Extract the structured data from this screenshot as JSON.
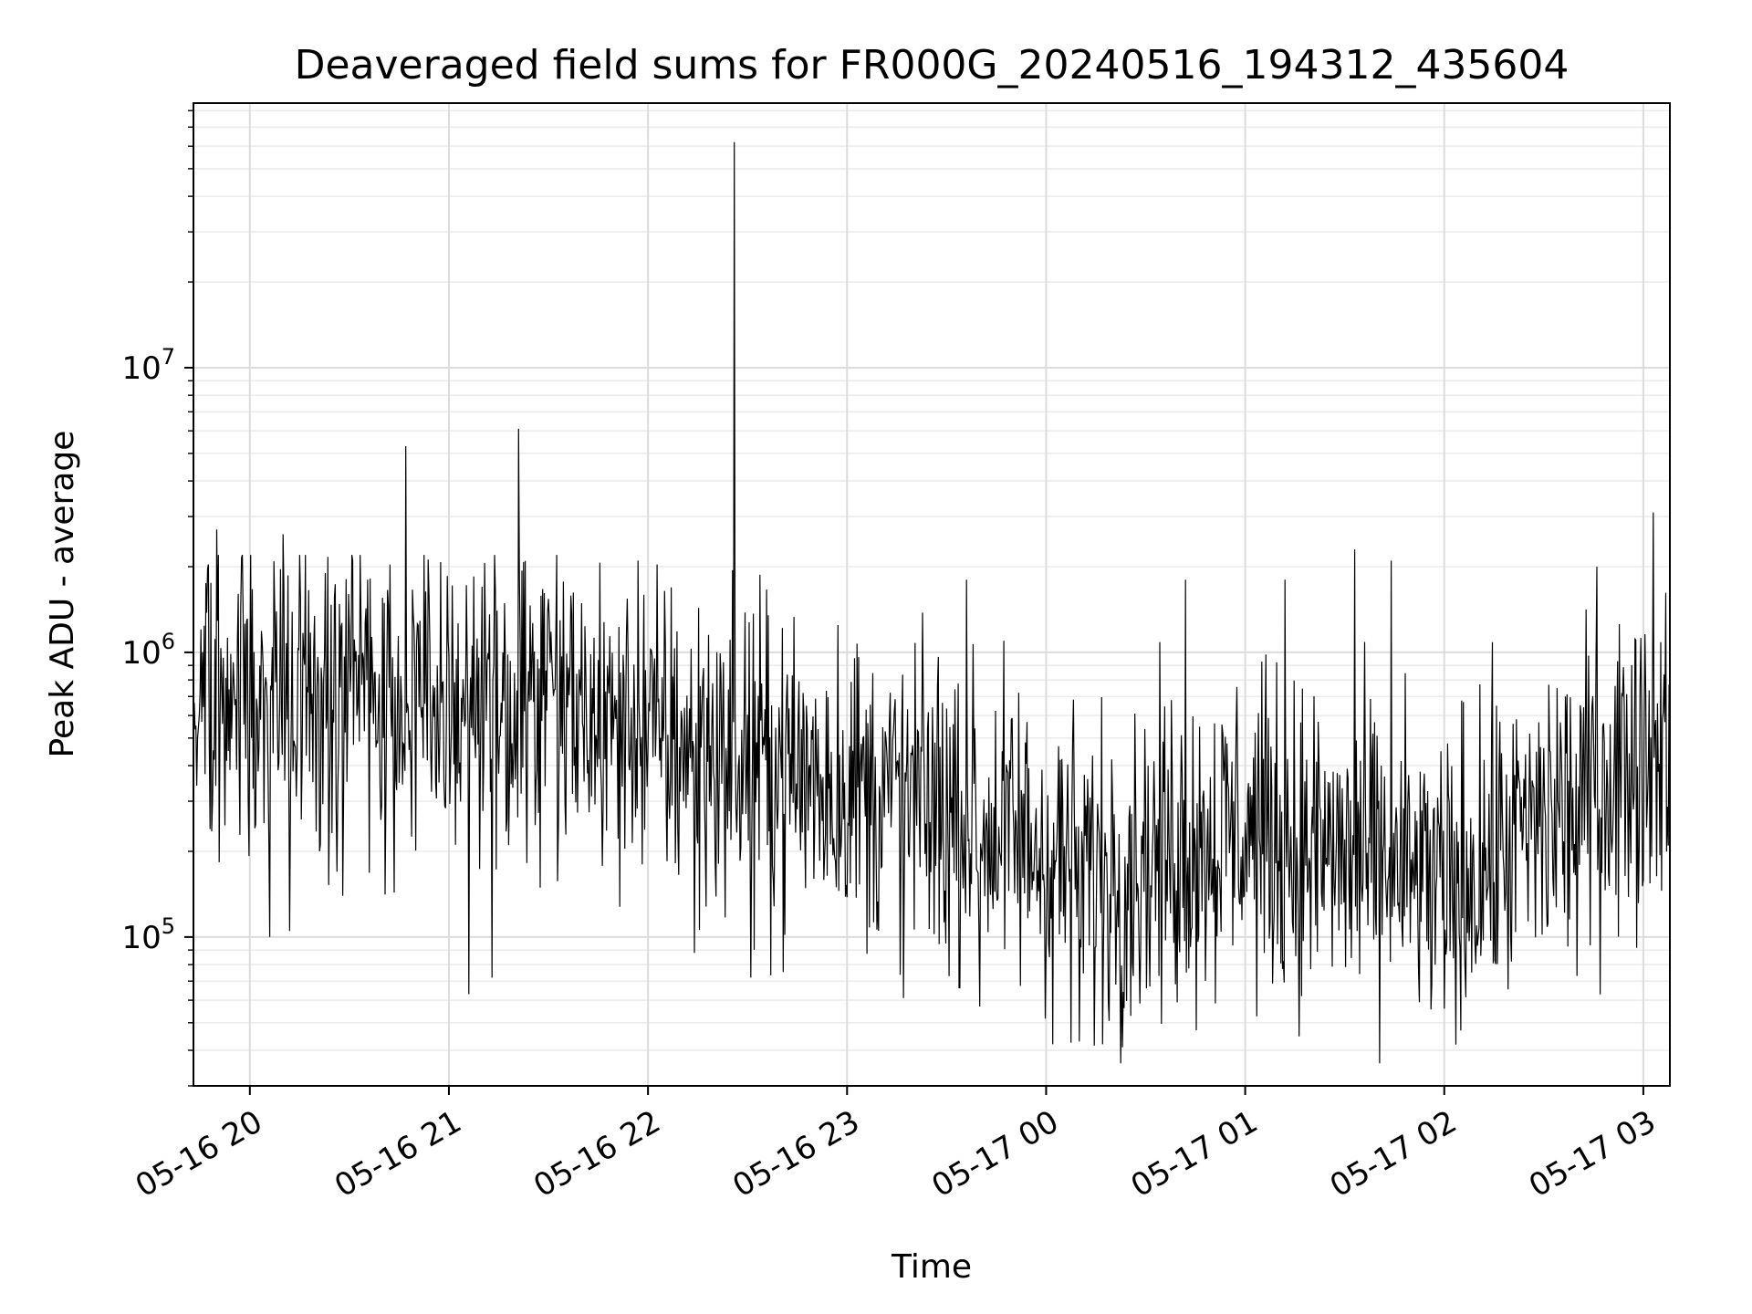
{
  "chart_data": {
    "type": "line",
    "title": "Deaveraged field sums for FR000G_20240516_194312_435604",
    "xlabel": "Time",
    "ylabel": "Peak ADU - average",
    "yscale": "log",
    "ylim": [
      30000,
      85000000
    ],
    "xlim": [
      "05-16 19:43",
      "05-17 03:08"
    ],
    "grid": true,
    "line_color": "#000000",
    "x_ticks": [
      {
        "time": "05-16 20:00",
        "label": "05-16 20"
      },
      {
        "time": "05-16 21:00",
        "label": "05-16 21"
      },
      {
        "time": "05-16 22:00",
        "label": "05-16 22"
      },
      {
        "time": "05-16 23:00",
        "label": "05-16 23"
      },
      {
        "time": "05-17 00:00",
        "label": "05-17 00"
      },
      {
        "time": "05-17 01:00",
        "label": "05-17 01"
      },
      {
        "time": "05-17 02:00",
        "label": "05-17 02"
      },
      {
        "time": "05-17 03:00",
        "label": "05-17 03"
      }
    ],
    "y_ticks": [
      {
        "value": 100000,
        "base": "10",
        "exp": "5"
      },
      {
        "value": 1000000,
        "base": "10",
        "exp": "6"
      },
      {
        "value": 10000000,
        "base": "10",
        "exp": "7"
      }
    ],
    "series": [
      {
        "sample_interval_seconds": 15,
        "x_start": "05-16 19:43",
        "x_end": "05-17 03:08",
        "level_profile": [
          {
            "time": "05-16 19:43",
            "median": 750000
          },
          {
            "time": "05-16 20:30",
            "median": 750000
          },
          {
            "time": "05-16 21:30",
            "median": 620000
          },
          {
            "time": "05-16 22:30",
            "median": 420000
          },
          {
            "time": "05-16 23:30",
            "median": 280000
          },
          {
            "time": "05-17 00:15",
            "median": 170000
          },
          {
            "time": "05-17 01:00",
            "median": 240000
          },
          {
            "time": "05-17 02:00",
            "median": 150000
          },
          {
            "time": "05-17 02:40",
            "median": 300000
          },
          {
            "time": "05-17 03:08",
            "median": 550000
          }
        ],
        "peaks": [
          {
            "time": "05-16 19:50",
            "value": 2700000
          },
          {
            "time": "05-16 20:10",
            "value": 2600000
          },
          {
            "time": "05-16 20:31",
            "value": 2100000
          },
          {
            "time": "05-16 20:47",
            "value": 5300000
          },
          {
            "time": "05-16 21:21",
            "value": 6100000
          },
          {
            "time": "05-16 21:57",
            "value": 2100000
          },
          {
            "time": "05-16 22:26",
            "value": 62000000
          },
          {
            "time": "05-16 23:36",
            "value": 1800000
          },
          {
            "time": "05-17 00:42",
            "value": 1800000
          },
          {
            "time": "05-17 01:12",
            "value": 1800000
          },
          {
            "time": "05-17 01:33",
            "value": 2300000
          },
          {
            "time": "05-17 01:44",
            "value": 2100000
          },
          {
            "time": "05-17 02:46",
            "value": 2000000
          },
          {
            "time": "05-17 03:03",
            "value": 3100000
          }
        ],
        "dips": [
          {
            "time": "05-16 20:06",
            "value": 100000
          },
          {
            "time": "05-16 20:12",
            "value": 105000
          },
          {
            "time": "05-16 21:06",
            "value": 63000
          },
          {
            "time": "05-16 21:13",
            "value": 72000
          },
          {
            "time": "05-16 22:14",
            "value": 88000
          },
          {
            "time": "05-16 22:31",
            "value": 72000
          },
          {
            "time": "05-16 23:17",
            "value": 61000
          },
          {
            "time": "05-16 23:40",
            "value": 57000
          },
          {
            "time": "05-17 00:02",
            "value": 42000
          },
          {
            "time": "05-17 00:10",
            "value": 43000
          },
          {
            "time": "05-17 00:17",
            "value": 42000
          },
          {
            "time": "05-17 00:23",
            "value": 41000
          },
          {
            "time": "05-17 01:17",
            "value": 62000
          },
          {
            "time": "05-17 02:00",
            "value": 56000
          },
          {
            "time": "05-17 02:05",
            "value": 47000
          },
          {
            "time": "05-17 02:40",
            "value": 73000
          }
        ]
      }
    ]
  }
}
